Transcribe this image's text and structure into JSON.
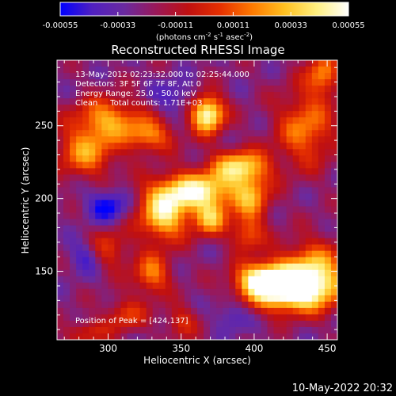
{
  "colorbar": {
    "ticks": [
      "-0.00055",
      "-0.00033",
      "-0.00011",
      "0.00011",
      "0.00033",
      "0.00055"
    ],
    "tick_values": [
      -0.00055,
      -0.00033,
      -0.00011,
      0.00011,
      0.00033,
      0.00055
    ],
    "range": [
      -0.00055,
      0.00055
    ],
    "unit_main": "(photons cm",
    "unit_exp1": "-2",
    "unit_mid": " s",
    "unit_exp2": "-1",
    "unit_tail": " asec",
    "unit_exp3": "-2",
    "unit_close": ")"
  },
  "colors": {
    "background": "#000000",
    "text": "#ffffff",
    "colormap": [
      "#0000ff",
      "#5020c0",
      "#6a2aa0",
      "#9a1858",
      "#c01010",
      "#e63000",
      "#ff7a00",
      "#ffc020",
      "#fff080",
      "#ffffff"
    ]
  },
  "chart_data": {
    "type": "heatmap",
    "title": "Reconstructed RHESSI Image",
    "xlabel": "Heliocentric X (arcsec)",
    "ylabel": "Heliocentric Y (arcsec)",
    "xlim": [
      265,
      457
    ],
    "ylim": [
      103,
      295
    ],
    "xticks": [
      300,
      350,
      400,
      450
    ],
    "yticks": [
      150,
      200,
      250
    ],
    "grid": false,
    "annotations": [
      "13-May-2012 02:23:32.000 to 02:25:44.000",
      "Detectors: 3F 5F 6F 7F 8F, Att 0",
      "Energy Range: 25.0 - 50.0 keV",
      "Clean     Total counts: 1.71E+03"
    ],
    "peak_label": "Position of Peak = [424,137]",
    "peak": [
      424,
      137
    ],
    "colorbar_unit": "photons cm-2 s-1 asec-2",
    "features": [
      {
        "x": 424,
        "y": 137,
        "sx": 20,
        "sy": 10,
        "v": 1.0
      },
      {
        "x": 440,
        "y": 150,
        "sx": 16,
        "sy": 14,
        "v": 0.65
      },
      {
        "x": 405,
        "y": 145,
        "sx": 12,
        "sy": 8,
        "v": 0.7
      },
      {
        "x": 360,
        "y": 205,
        "sx": 20,
        "sy": 9,
        "v": 0.85
      },
      {
        "x": 390,
        "y": 222,
        "sx": 14,
        "sy": 8,
        "v": 0.7
      },
      {
        "x": 338,
        "y": 188,
        "sx": 12,
        "sy": 12,
        "v": 0.75
      },
      {
        "x": 370,
        "y": 186,
        "sx": 8,
        "sy": 8,
        "v": 0.6
      },
      {
        "x": 368,
        "y": 258,
        "sx": 8,
        "sy": 9,
        "v": 0.95
      },
      {
        "x": 300,
        "y": 255,
        "sx": 16,
        "sy": 10,
        "v": 0.55
      },
      {
        "x": 285,
        "y": 232,
        "sx": 14,
        "sy": 12,
        "v": 0.55
      },
      {
        "x": 328,
        "y": 243,
        "sx": 12,
        "sy": 8,
        "v": 0.5
      },
      {
        "x": 435,
        "y": 248,
        "sx": 14,
        "sy": 18,
        "v": 0.5
      },
      {
        "x": 447,
        "y": 285,
        "sx": 8,
        "sy": 10,
        "v": 0.5
      },
      {
        "x": 398,
        "y": 200,
        "sx": 9,
        "sy": 12,
        "v": 0.5
      },
      {
        "x": 330,
        "y": 148,
        "sx": 9,
        "sy": 10,
        "v": 0.5
      },
      {
        "x": 300,
        "y": 165,
        "sx": 10,
        "sy": 10,
        "v": 0.35
      },
      {
        "x": 312,
        "y": 120,
        "sx": 10,
        "sy": 8,
        "v": 0.35
      },
      {
        "x": 350,
        "y": 115,
        "sx": 8,
        "sy": 8,
        "v": 0.3
      },
      {
        "x": 395,
        "y": 175,
        "sx": 8,
        "sy": 8,
        "v": 0.4
      },
      {
        "x": 285,
        "y": 108,
        "sx": 10,
        "sy": 6,
        "v": 0.3
      },
      {
        "x": 300,
        "y": 195,
        "sx": 10,
        "sy": 8,
        "v": -0.4
      },
      {
        "x": 285,
        "y": 160,
        "sx": 8,
        "sy": 8,
        "v": -0.3
      },
      {
        "x": 345,
        "y": 270,
        "sx": 10,
        "sy": 8,
        "v": -0.25
      },
      {
        "x": 385,
        "y": 120,
        "sx": 8,
        "sy": 8,
        "v": -0.25
      }
    ]
  },
  "footer": {
    "timestamp": "10-May-2022 20:32"
  }
}
